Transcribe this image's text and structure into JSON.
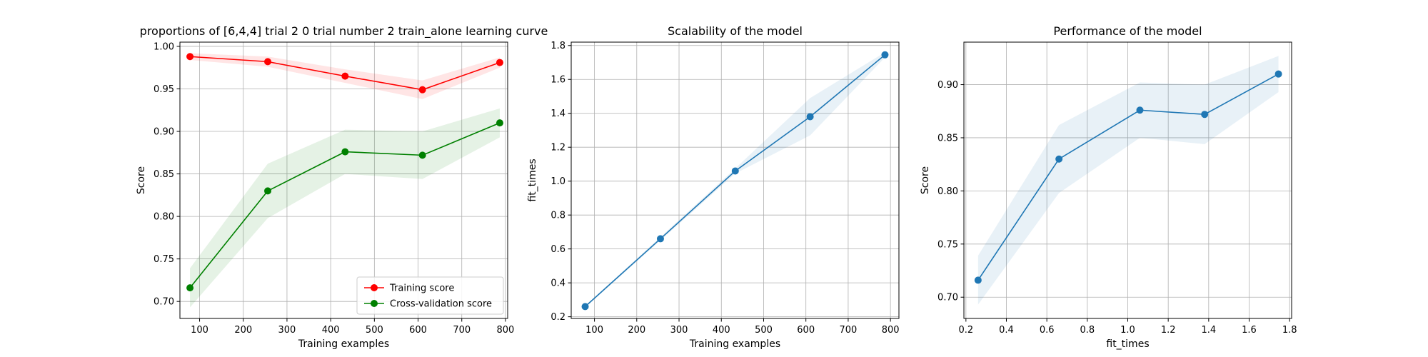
{
  "chart_data": [
    {
      "type": "line",
      "title": "proportions of [6,4,4] trial 2 0 trial number 2 train_alone learning curve",
      "xlabel": "Training examples",
      "ylabel": "Score",
      "xlim": [
        55,
        805
      ],
      "ylim": [
        0.68,
        1.005
      ],
      "xticks": [
        100,
        200,
        300,
        400,
        500,
        600,
        700,
        800
      ],
      "yticks": [
        0.7,
        0.75,
        0.8,
        0.85,
        0.9,
        0.95,
        1.0
      ],
      "x": [
        78,
        256,
        433,
        610,
        787
      ],
      "series": [
        {
          "name": "Training score",
          "color": "#ff0000",
          "values": [
            0.988,
            0.982,
            0.965,
            0.949,
            0.981
          ],
          "band_low": [
            0.984,
            0.976,
            0.957,
            0.938,
            0.975
          ],
          "band_high": [
            0.992,
            0.988,
            0.973,
            0.96,
            0.987
          ]
        },
        {
          "name": "Cross-validation score",
          "color": "#008000",
          "values": [
            0.716,
            0.83,
            0.876,
            0.872,
            0.91
          ],
          "band_low": [
            0.693,
            0.798,
            0.85,
            0.844,
            0.893
          ],
          "band_high": [
            0.739,
            0.862,
            0.902,
            0.9,
            0.927
          ]
        }
      ],
      "legend_position": "lower-right",
      "grid": true
    },
    {
      "type": "line",
      "title": "Scalability of the model",
      "xlabel": "Training examples",
      "ylabel": "fit_times",
      "xlim": [
        45,
        820
      ],
      "ylim": [
        0.19,
        1.82
      ],
      "xticks": [
        100,
        200,
        300,
        400,
        500,
        600,
        700,
        800
      ],
      "yticks": [
        0.2,
        0.4,
        0.6,
        0.8,
        1.0,
        1.2,
        1.4,
        1.6,
        1.8
      ],
      "x": [
        78,
        256,
        433,
        610,
        787
      ],
      "series": [
        {
          "color": "#1f77b4",
          "values": [
            0.26,
            0.66,
            1.06,
            1.38,
            1.745
          ],
          "band_low": [
            0.255,
            0.65,
            1.045,
            1.27,
            1.73
          ],
          "band_high": [
            0.265,
            0.67,
            1.075,
            1.49,
            1.76
          ]
        }
      ],
      "grid": true
    },
    {
      "type": "line",
      "title": "Performance of the model",
      "xlabel": "fit_times",
      "ylabel": "Score",
      "xlim": [
        0.19,
        1.81
      ],
      "ylim": [
        0.68,
        0.94
      ],
      "xticks": [
        0.2,
        0.4,
        0.6,
        0.8,
        1.0,
        1.2,
        1.4,
        1.6,
        1.8
      ],
      "yticks": [
        0.7,
        0.75,
        0.8,
        0.85,
        0.9
      ],
      "x": [
        0.26,
        0.66,
        1.06,
        1.38,
        1.745
      ],
      "series": [
        {
          "color": "#1f77b4",
          "values": [
            0.716,
            0.83,
            0.876,
            0.872,
            0.91
          ],
          "band_low": [
            0.693,
            0.798,
            0.85,
            0.844,
            0.893
          ],
          "band_high": [
            0.739,
            0.862,
            0.902,
            0.9,
            0.927
          ]
        }
      ],
      "grid": true
    }
  ]
}
